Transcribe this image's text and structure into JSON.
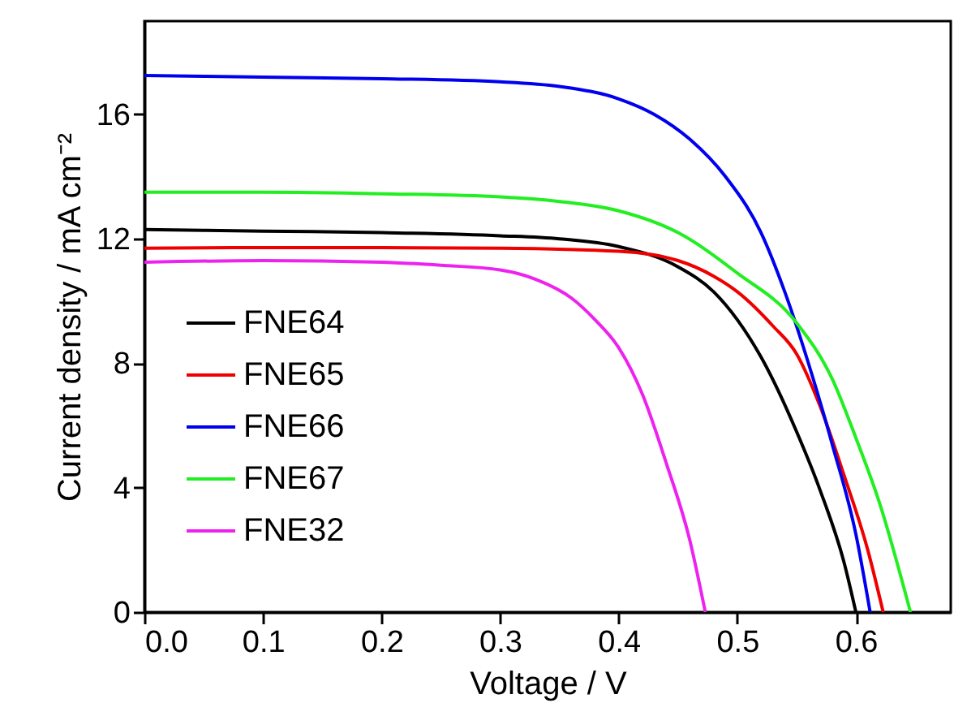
{
  "chart_data": {
    "type": "line",
    "xlabel": "Voltage  / V",
    "ylabel": "Current density / mA cm⁻²",
    "xlim": [
      0,
      0.68
    ],
    "ylim": [
      0,
      19
    ],
    "xticks": [
      {
        "value": 0,
        "label": "0.0"
      },
      0.1,
      0.2,
      0.3,
      0.4,
      0.5,
      0.6
    ],
    "yticks": [
      0,
      4,
      8,
      12,
      16
    ],
    "grid": false,
    "legend": "left",
    "marker": "none",
    "line_style": "solid",
    "series": [
      {
        "name": "FNE64",
        "color": "#000000",
        "x": [
          0,
          0.1,
          0.2,
          0.3,
          0.35,
          0.4,
          0.45,
          0.48,
          0.5,
          0.52,
          0.55,
          0.57,
          0.59,
          0.6
        ],
        "values": [
          12.3,
          12.25,
          12.2,
          12.1,
          12.0,
          11.75,
          11.1,
          10.3,
          9.4,
          8.2,
          5.8,
          3.9,
          1.6,
          0
        ]
      },
      {
        "name": "FNE65",
        "color": "#ee0000",
        "x": [
          0,
          0.1,
          0.2,
          0.3,
          0.4,
          0.45,
          0.48,
          0.5,
          0.53,
          0.55,
          0.57,
          0.59,
          0.61,
          0.623
        ],
        "values": [
          11.7,
          11.72,
          11.72,
          11.7,
          11.6,
          11.3,
          10.8,
          10.3,
          9.2,
          8.3,
          6.6,
          4.4,
          2.0,
          0
        ]
      },
      {
        "name": "FNE66",
        "color": "#0000ee",
        "x": [
          0,
          0.1,
          0.2,
          0.3,
          0.35,
          0.4,
          0.43,
          0.46,
          0.49,
          0.52,
          0.54,
          0.56,
          0.58,
          0.6,
          0.612
        ],
        "values": [
          17.25,
          17.2,
          17.15,
          17.05,
          16.9,
          16.5,
          16.0,
          15.2,
          14.0,
          12.2,
          10.3,
          8.0,
          5.4,
          2.5,
          0
        ]
      },
      {
        "name": "FNE67",
        "color": "#22ee22",
        "x": [
          0,
          0.1,
          0.2,
          0.3,
          0.35,
          0.4,
          0.45,
          0.5,
          0.55,
          0.58,
          0.6,
          0.62,
          0.646
        ],
        "values": [
          13.5,
          13.5,
          13.45,
          13.35,
          13.2,
          12.9,
          12.2,
          10.9,
          9.3,
          7.5,
          5.6,
          3.5,
          0
        ]
      },
      {
        "name": "FNE32",
        "color": "#ee22ee",
        "x": [
          0,
          0.1,
          0.2,
          0.25,
          0.3,
          0.33,
          0.36,
          0.38,
          0.4,
          0.42,
          0.44,
          0.46,
          0.473
        ],
        "values": [
          11.25,
          11.3,
          11.25,
          11.15,
          11.0,
          10.7,
          10.1,
          9.4,
          8.5,
          7.0,
          4.8,
          2.3,
          0
        ]
      }
    ]
  }
}
